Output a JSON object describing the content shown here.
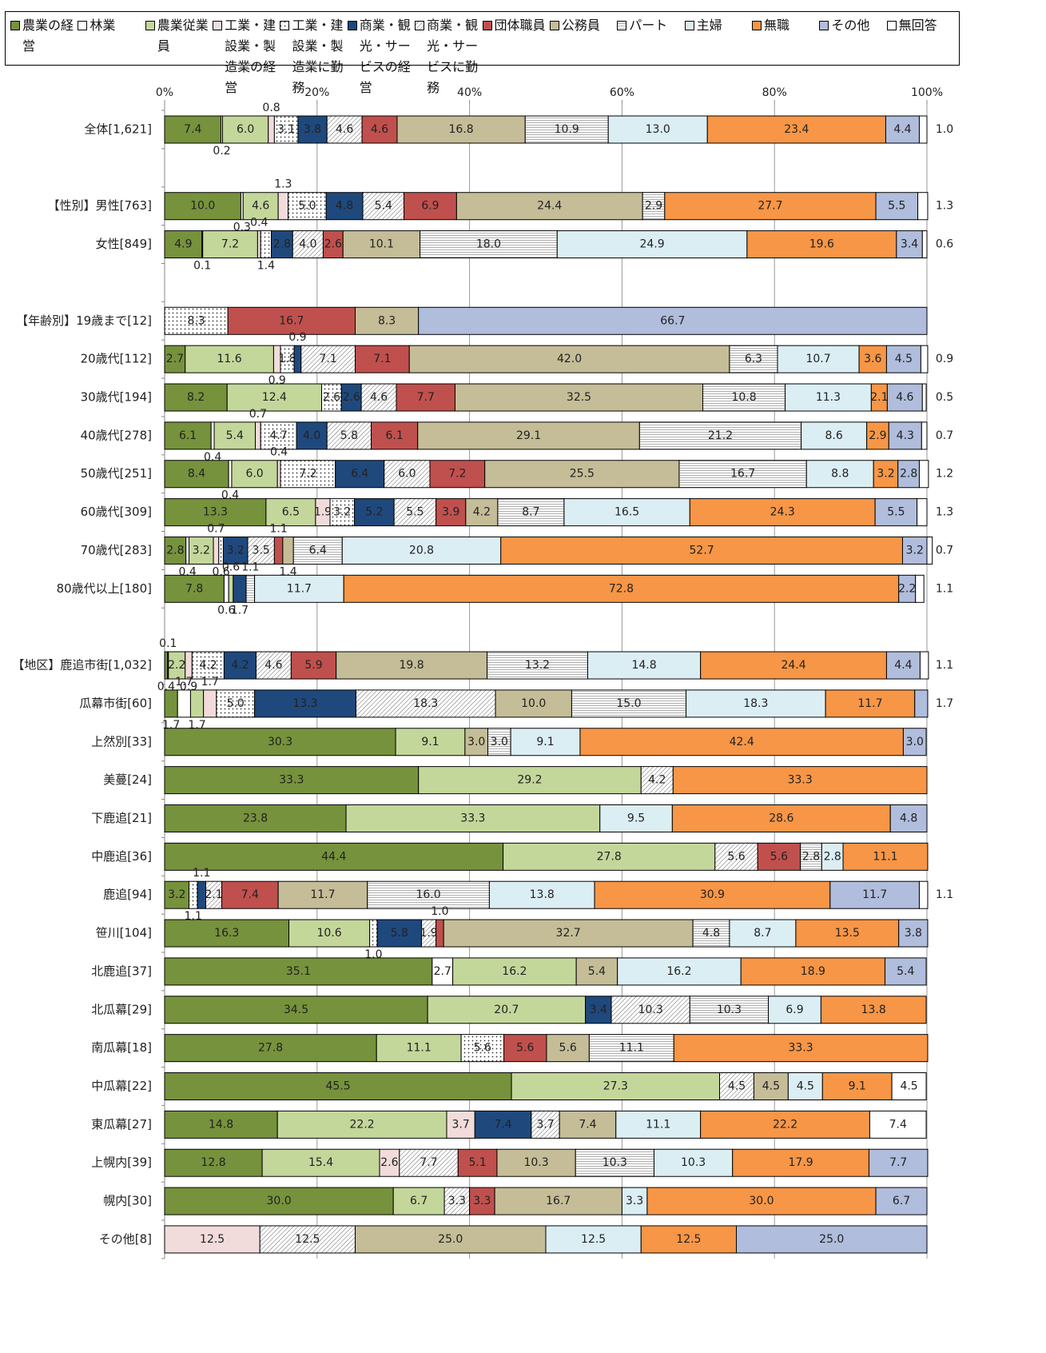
{
  "chart_data": {
    "type": "bar",
    "orientation": "horizontal",
    "stacked": true,
    "categories": [
      "全体[1,621]",
      null,
      "【性別】男性[763]",
      "女性[849]",
      null,
      "【年齢別】19歳まで[12]",
      "20歳代[112]",
      "30歳代[194]",
      "40歳代[278]",
      "50歳代[251]",
      "60歳代[309]",
      "70歳代[283]",
      "80歳代以上[180]",
      null,
      "【地区】鹿追市街[1,032]",
      "瓜幕市街[60]",
      "上然別[33]",
      "美蔓[24]",
      "下鹿追[21]",
      "中鹿追[36]",
      "鹿追[94]",
      "笹川[104]",
      "北鹿追[37]",
      "北瓜幕[29]",
      "南瓜幕[18]",
      "中瓜幕[22]",
      "東瓜幕[27]",
      "上幌内[39]",
      "幌内[30]",
      "その他[8]"
    ],
    "xlim": [
      0,
      100
    ],
    "xticks": [
      {
        "value": 0,
        "label": "0%"
      },
      {
        "value": 20,
        "label": "20%"
      },
      {
        "value": 40,
        "label": "40%"
      },
      {
        "value": 60,
        "label": "60%"
      },
      {
        "value": 80,
        "label": "80%"
      },
      {
        "value": 100,
        "label": "100%"
      }
    ],
    "grid": true,
    "legend": "top",
    "series": [
      {
        "name": "農業の経営",
        "color": "#76923c",
        "values": [
          7.4,
          null,
          10.0,
          4.9,
          null,
          null,
          2.7,
          8.2,
          6.1,
          8.4,
          13.3,
          2.8,
          7.8,
          null,
          0.4,
          1.7,
          30.3,
          33.3,
          23.8,
          44.4,
          3.2,
          16.3,
          35.1,
          34.5,
          27.8,
          45.5,
          14.8,
          12.8,
          30.0,
          null
        ],
        "value_labels": [
          "7.4",
          null,
          "10.0",
          "4.9",
          null,
          null,
          "2.7",
          "8.2",
          "6.1",
          "8.4",
          "13.3",
          "2.8",
          "7.8",
          null,
          "0.4",
          "1.7",
          "30.3",
          "33.3",
          "23.8",
          "44.4",
          "3.2",
          "16.3",
          "35.1",
          "34.5",
          "27.8",
          "45.5",
          "14.8",
          "12.8",
          "30.0",
          null
        ]
      },
      {
        "name": "林業",
        "color": "#ffffff",
        "values": [
          0.2,
          null,
          0.3,
          0.1,
          null,
          null,
          null,
          null,
          0.4,
          0.4,
          null,
          0.4,
          0.6,
          null,
          0.1,
          1.7,
          null,
          null,
          null,
          null,
          null,
          null,
          2.7,
          null,
          null,
          null,
          null,
          null,
          null,
          null
        ],
        "value_labels": [
          "0.2",
          null,
          "0.3",
          "0.1",
          null,
          null,
          null,
          null,
          "0.4",
          "0.4",
          null,
          "0.4",
          "0.6",
          null,
          "0.1",
          "1.7",
          null,
          null,
          null,
          null,
          null,
          null,
          "2.7",
          null,
          null,
          null,
          null,
          null,
          null,
          null
        ]
      },
      {
        "name": "農業従業員",
        "color": "#c4d79b",
        "values": [
          6.0,
          null,
          4.6,
          7.2,
          null,
          null,
          11.6,
          12.4,
          5.4,
          6.0,
          6.5,
          3.2,
          0.6,
          null,
          2.2,
          1.7,
          9.1,
          29.2,
          33.3,
          27.8,
          null,
          10.6,
          16.2,
          20.7,
          11.1,
          27.3,
          22.2,
          15.4,
          6.7,
          null
        ],
        "value_labels": [
          "6.0",
          null,
          "4.6",
          "7.2",
          null,
          null,
          "11.6",
          "12.4",
          "5.4",
          "6.0",
          "6.5",
          "3.2",
          "0.6",
          null,
          "2.2",
          "1.7",
          "9.1",
          "29.2",
          "33.3",
          "27.8",
          null,
          "10.6",
          "16.2",
          "20.7",
          "11.1",
          "27.3",
          "22.2",
          "15.4",
          "6.7",
          null
        ]
      },
      {
        "name": "工業・建設業・製造業の経営",
        "color": "#f2dcdb",
        "values": [
          0.8,
          null,
          1.3,
          0.4,
          null,
          null,
          0.9,
          null,
          0.7,
          0.4,
          1.9,
          0.7,
          null,
          null,
          0.9,
          1.7,
          null,
          null,
          null,
          null,
          null,
          null,
          null,
          null,
          null,
          null,
          3.7,
          2.6,
          null,
          12.5
        ],
        "value_labels": [
          "0.8",
          null,
          "1.3",
          "0.4",
          null,
          null,
          "0.9",
          null,
          "0.7",
          "0.4",
          "1.9",
          "0.7",
          null,
          null,
          "0.9",
          "1.7",
          null,
          null,
          null,
          null,
          null,
          null,
          null,
          null,
          null,
          null,
          "3.7",
          "2.6",
          null,
          "12.5"
        ]
      },
      {
        "name": "工業・建設業・製造業に勤務",
        "color": "#ffffff",
        "pattern": "dots",
        "values": [
          3.1,
          null,
          5.0,
          1.4,
          null,
          8.3,
          1.8,
          2.6,
          4.7,
          7.2,
          3.2,
          0.6,
          null,
          null,
          4.2,
          5.0,
          null,
          null,
          null,
          null,
          1.1,
          1.0,
          null,
          null,
          5.6,
          null,
          null,
          null,
          null,
          null
        ],
        "value_labels": [
          "3.1",
          null,
          "5.0",
          "1.4",
          null,
          "8.3",
          "1.8",
          "2.6",
          "4.7",
          "7.2",
          "3.2",
          "0.6",
          null,
          null,
          "4.2",
          "5.0",
          null,
          null,
          null,
          null,
          "1.1",
          "1.0",
          null,
          null,
          "5.6",
          null,
          null,
          null,
          null,
          null
        ]
      },
      {
        "name": "商業・観光・サービスの経営",
        "color": "#1f497d",
        "values": [
          3.8,
          null,
          4.8,
          2.8,
          null,
          null,
          0.9,
          2.6,
          4.0,
          6.4,
          5.2,
          3.2,
          1.7,
          null,
          4.2,
          13.3,
          null,
          null,
          null,
          null,
          1.1,
          5.8,
          null,
          3.4,
          null,
          null,
          7.4,
          null,
          null,
          null
        ],
        "value_labels": [
          "3.8",
          null,
          "4.8",
          "2.8",
          null,
          null,
          "0.9",
          "2.6",
          "4.0",
          "6.4",
          "5.2",
          "3.2",
          "1.7",
          null,
          "4.2",
          "13.3",
          null,
          null,
          null,
          null,
          "1.1",
          "5.8",
          null,
          "3.4",
          null,
          null,
          "7.4",
          null,
          null,
          null
        ]
      },
      {
        "name": "商業・観光・サービスに勤務",
        "color": "#ffffff",
        "pattern": "hatch",
        "values": [
          4.6,
          null,
          5.4,
          4.0,
          null,
          null,
          7.1,
          4.6,
          5.8,
          6.0,
          5.5,
          3.5,
          null,
          null,
          4.6,
          18.3,
          null,
          4.2,
          null,
          5.6,
          2.1,
          1.9,
          null,
          10.3,
          null,
          4.5,
          3.7,
          7.7,
          3.3,
          12.5
        ],
        "value_labels": [
          "4.6",
          null,
          "5.4",
          "4.0",
          null,
          null,
          "7.1",
          "4.6",
          "5.8",
          "6.0",
          "5.5",
          "3.5",
          null,
          null,
          "4.6",
          "18.3",
          null,
          "4.2",
          null,
          "5.6",
          "2.1",
          "1.9",
          null,
          "10.3",
          null,
          "4.5",
          "3.7",
          "7.7",
          "3.3",
          "12.5"
        ]
      },
      {
        "name": "団体職員",
        "color": "#c0504d",
        "values": [
          4.6,
          null,
          6.9,
          2.6,
          null,
          16.7,
          7.1,
          7.7,
          6.1,
          7.2,
          3.9,
          1.1,
          null,
          null,
          5.9,
          null,
          null,
          null,
          null,
          5.6,
          7.4,
          1.0,
          null,
          null,
          5.6,
          null,
          null,
          5.1,
          3.3,
          null
        ],
        "value_labels": [
          "4.6",
          null,
          "6.9",
          "2.6",
          null,
          "16.7",
          "7.1",
          "7.7",
          "6.1",
          "7.2",
          "3.9",
          "1.1",
          null,
          null,
          "5.9",
          null,
          null,
          null,
          null,
          "5.6",
          "7.4",
          "1.0",
          null,
          null,
          "5.6",
          null,
          null,
          "5.1",
          "3.3",
          null
        ]
      },
      {
        "name": "公務員",
        "color": "#c4bd97",
        "values": [
          16.8,
          null,
          24.4,
          10.1,
          null,
          8.3,
          42.0,
          32.5,
          29.1,
          25.5,
          4.2,
          1.4,
          null,
          null,
          19.8,
          10.0,
          3.0,
          null,
          null,
          null,
          11.7,
          32.7,
          5.4,
          null,
          5.6,
          4.5,
          7.4,
          10.3,
          16.7,
          25.0
        ],
        "value_labels": [
          "16.8",
          null,
          "24.4",
          "10.1",
          null,
          "8.3",
          "42.0",
          "32.5",
          "29.1",
          "25.5",
          "4.2",
          "1.4",
          null,
          null,
          "19.8",
          "10.0",
          "3.0",
          null,
          null,
          null,
          "11.7",
          "32.7",
          "5.4",
          null,
          "5.6",
          "4.5",
          "7.4",
          "10.3",
          "16.7",
          "25.0"
        ]
      },
      {
        "name": "パート",
        "color": "#ffffff",
        "pattern": "hlines",
        "values": [
          10.9,
          null,
          2.9,
          18.0,
          null,
          null,
          6.3,
          10.8,
          21.2,
          16.7,
          8.7,
          6.4,
          1.1,
          null,
          13.2,
          15.0,
          3.0,
          null,
          null,
          2.8,
          16.0,
          4.8,
          null,
          10.3,
          11.1,
          null,
          null,
          10.3,
          null,
          null
        ],
        "value_labels": [
          "10.9",
          null,
          "2.9",
          "18.0",
          null,
          null,
          "6.3",
          "10.8",
          "21.2",
          "16.7",
          "8.7",
          "6.4",
          "1.1",
          null,
          "13.2",
          "15.0",
          "3.0",
          null,
          null,
          "2.8",
          "16.0",
          "4.8",
          null,
          "10.3",
          "11.1",
          null,
          null,
          "10.3",
          null,
          null
        ]
      },
      {
        "name": "主婦",
        "color": "#dbeef4",
        "values": [
          13.0,
          null,
          null,
          24.9,
          null,
          null,
          10.7,
          11.3,
          8.6,
          8.8,
          16.5,
          20.8,
          11.7,
          null,
          14.8,
          18.3,
          9.1,
          null,
          9.5,
          2.8,
          13.8,
          8.7,
          16.2,
          6.9,
          null,
          4.5,
          11.1,
          10.3,
          3.3,
          12.5
        ],
        "value_labels": [
          "13.0",
          null,
          null,
          "24.9",
          null,
          null,
          "10.7",
          "11.3",
          "8.6",
          "8.8",
          "16.5",
          "20.8",
          "11.7",
          null,
          "14.8",
          "18.3",
          "9.1",
          null,
          "9.5",
          "2.8",
          "13.8",
          "8.7",
          "16.2",
          "6.9",
          null,
          "4.5",
          "11.1",
          "10.3",
          "3.3",
          "12.5"
        ]
      },
      {
        "name": "無職",
        "color": "#f79646",
        "values": [
          23.4,
          null,
          27.7,
          19.6,
          null,
          null,
          3.6,
          2.1,
          2.9,
          3.2,
          24.3,
          52.7,
          72.8,
          null,
          24.4,
          11.7,
          42.4,
          33.3,
          28.6,
          11.1,
          30.9,
          13.5,
          18.9,
          13.8,
          33.3,
          9.1,
          22.2,
          17.9,
          30.0,
          12.5
        ],
        "value_labels": [
          "23.4",
          null,
          "27.7",
          "19.6",
          null,
          null,
          "3.6",
          "2.1",
          "2.9",
          "3.2",
          "24.3",
          "52.7",
          "72.8",
          null,
          "24.4",
          "11.7",
          "42.4",
          "33.3",
          "28.6",
          "11.1",
          "30.9",
          "13.5",
          "18.9",
          "13.8",
          "33.3",
          "9.1",
          "22.2",
          "17.9",
          "30.0",
          "12.5"
        ]
      },
      {
        "name": "その他",
        "color": "#b0bddc",
        "values": [
          4.4,
          null,
          5.5,
          3.4,
          null,
          66.7,
          4.5,
          4.6,
          4.3,
          2.8,
          5.5,
          3.2,
          2.2,
          null,
          4.4,
          1.7,
          3.0,
          null,
          4.8,
          null,
          11.7,
          3.8,
          5.4,
          null,
          null,
          null,
          null,
          7.7,
          6.7,
          25.0
        ],
        "value_labels": [
          "4.4",
          null,
          "5.5",
          "3.4",
          null,
          "66.7",
          "4.5",
          "4.6",
          "4.3",
          "2.8",
          "5.5",
          "3.2",
          "2.2",
          null,
          "4.4",
          "1.7",
          "3.0",
          null,
          "4.8",
          null,
          "11.7",
          "3.8",
          "5.4",
          null,
          null,
          null,
          null,
          "7.7",
          "6.7",
          "25.0"
        ]
      },
      {
        "name": "無回答",
        "color": "#ffffff",
        "values": [
          1.0,
          null,
          1.3,
          0.6,
          null,
          null,
          0.9,
          0.5,
          0.7,
          1.2,
          1.3,
          0.7,
          1.1,
          null,
          1.1,
          null,
          null,
          null,
          null,
          null,
          1.1,
          null,
          null,
          null,
          null,
          4.5,
          7.4,
          null,
          null,
          null
        ],
        "value_labels": [
          "1.0",
          null,
          "1.3",
          "0.6",
          null,
          null,
          "0.9",
          "0.5",
          "0.7",
          "1.2",
          "1.3",
          "0.7",
          "1.1",
          null,
          "1.1",
          null,
          null,
          null,
          null,
          null,
          "1.1",
          null,
          null,
          null,
          null,
          "4.5",
          "7.4",
          null,
          null,
          null
        ]
      }
    ]
  }
}
